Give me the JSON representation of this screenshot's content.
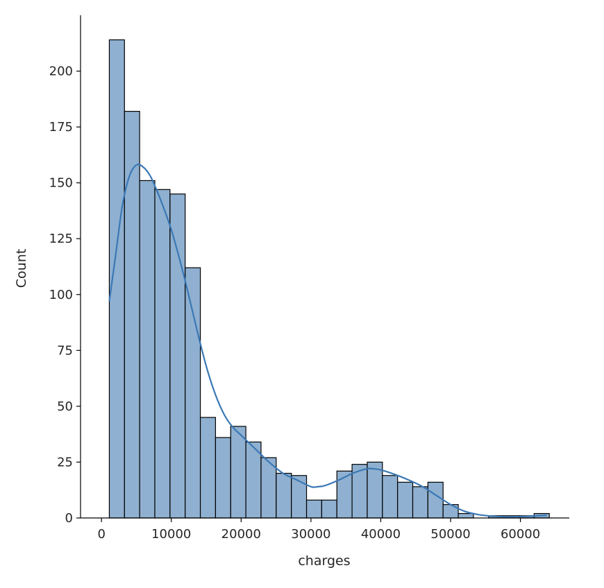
{
  "chart_data": {
    "type": "bar",
    "subtype": "histogram-with-kde",
    "title": "",
    "xlabel": "charges",
    "ylabel": "Count",
    "xlim": [
      -3000,
      67000
    ],
    "ylim": [
      0,
      225
    ],
    "x_ticks": [
      0,
      10000,
      20000,
      30000,
      40000,
      50000,
      60000
    ],
    "x_tick_labels": [
      "0",
      "10000",
      "20000",
      "30000",
      "40000",
      "50000",
      "60000"
    ],
    "y_ticks": [
      0,
      25,
      50,
      75,
      100,
      125,
      150,
      175,
      200
    ],
    "y_tick_labels": [
      "0",
      "25",
      "50",
      "75",
      "100",
      "125",
      "150",
      "175",
      "200"
    ],
    "bin_start": 1121.87,
    "bin_width": 2172.9,
    "counts": [
      214,
      182,
      151,
      147,
      145,
      112,
      45,
      36,
      41,
      34,
      27,
      20,
      19,
      8,
      8,
      21,
      24,
      25,
      19,
      16,
      14,
      16,
      6,
      2,
      0,
      1,
      1,
      1,
      2
    ],
    "kde": {
      "x": [
        1122,
        2000,
        3000,
        4000,
        5000,
        6000,
        7000,
        8000,
        9000,
        10000,
        11000,
        12000,
        13000,
        14000,
        15000,
        16000,
        17000,
        18000,
        19000,
        20000,
        22000,
        24000,
        26000,
        28000,
        30000,
        31000,
        32000,
        34000,
        36000,
        38000,
        39000,
        40000,
        42000,
        44000,
        46000,
        48000,
        50000,
        52000,
        54000,
        56000,
        58000,
        60000,
        62000,
        63770
      ],
      "y": [
        97,
        117,
        140,
        153,
        158,
        157,
        153,
        146,
        138,
        129,
        118,
        106,
        93,
        80,
        68,
        58,
        50,
        44,
        40,
        37,
        31,
        25,
        20,
        17,
        14,
        14,
        14.5,
        17,
        20,
        22,
        22,
        21.5,
        19.5,
        17,
        14,
        10,
        6,
        3,
        1.5,
        0.8,
        0.5,
        0.6,
        0.9,
        1.2
      ]
    },
    "bar_fill": "#8fb0d0",
    "bar_edge": "#000000",
    "line_color": "#3a78b5",
    "grid": false,
    "legend": "none"
  }
}
